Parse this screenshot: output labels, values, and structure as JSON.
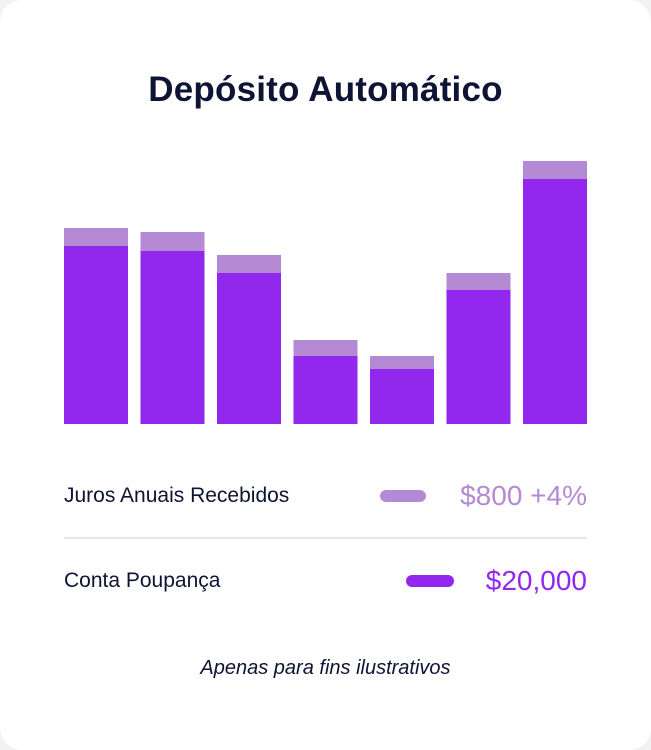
{
  "colors": {
    "interest": "#b48ad4",
    "savings": "#9227ee",
    "text": "#0e1433",
    "divider": "#e3e4f6"
  },
  "chart_data": {
    "type": "bar",
    "stacked": true,
    "title": "Depósito Automático",
    "categories": [
      "",
      "",
      "",
      "",
      "",
      "",
      ""
    ],
    "series": [
      {
        "name": "Conta Poupança",
        "values": [
          178,
          173,
          151,
          68,
          55,
          134,
          245
        ]
      },
      {
        "name": "Juros Anuais Recebidos",
        "values": [
          18,
          19,
          18,
          16,
          13,
          17,
          18
        ]
      }
    ],
    "ylim": [
      0,
      263
    ],
    "axes_visible": false,
    "grid": false,
    "legend_position": "bottom"
  },
  "legend": {
    "interest": {
      "label": "Juros Anuais Recebidos",
      "value": "$800 +4%"
    },
    "savings": {
      "label": "Conta Poupança",
      "value": "$20,000"
    }
  },
  "footnote": "Apenas para fins ilustrativos"
}
